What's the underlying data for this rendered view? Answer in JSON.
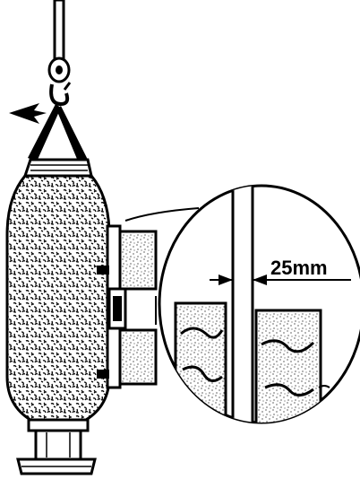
{
  "dimension": {
    "label": "25mm"
  },
  "colors": {
    "ink": "#000000",
    "paper": "#ffffff"
  },
  "icons": {
    "hook": "crane-hook-icon",
    "arrow": "lift-direction-arrow-icon"
  }
}
